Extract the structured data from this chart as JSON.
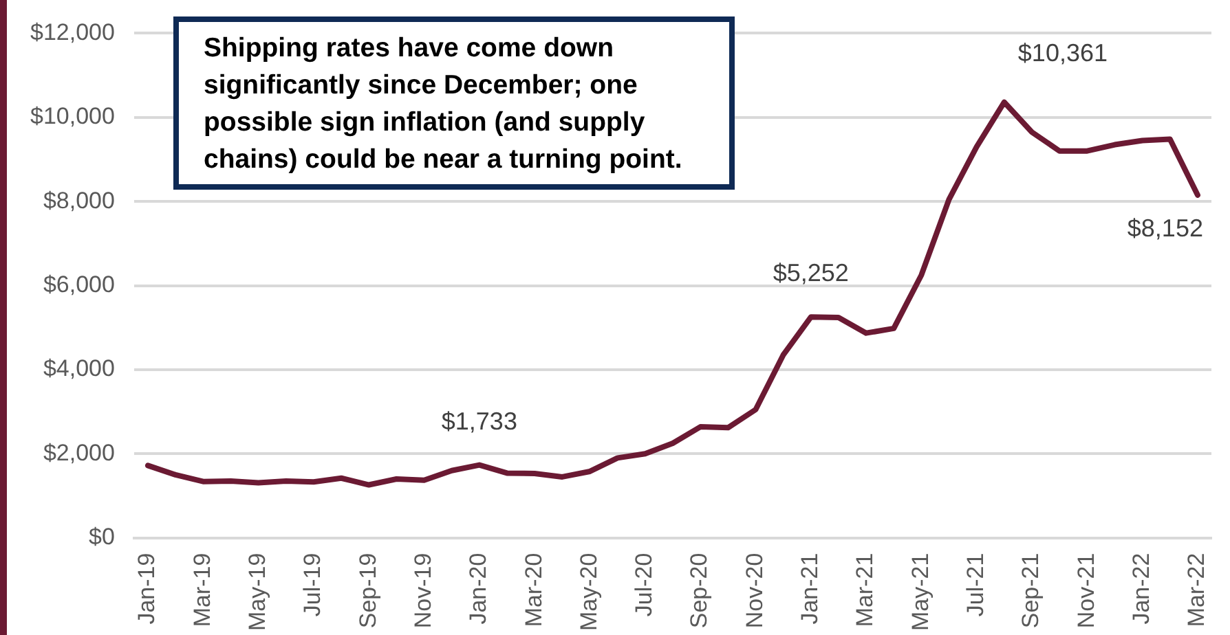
{
  "chart_data": {
    "type": "line",
    "categories": [
      "Jan-19",
      null,
      "Mar-19",
      null,
      "May-19",
      null,
      "Jul-19",
      null,
      "Sep-19",
      null,
      "Nov-19",
      null,
      "Jan-20",
      null,
      "Mar-20",
      null,
      "May-20",
      null,
      "Jul-20",
      null,
      "Sep-20",
      null,
      "Nov-20",
      null,
      "Jan-21",
      null,
      "Mar-21",
      null,
      "May-21",
      null,
      "Jul-21",
      null,
      "Sep-21",
      null,
      "Nov-21",
      null,
      "Jan-22",
      null,
      "Mar-22"
    ],
    "series": [
      {
        "color": "#6b1a33",
        "values": [
          1720,
          1500,
          1340,
          1350,
          1310,
          1350,
          1330,
          1420,
          1260,
          1400,
          1370,
          1600,
          1733,
          1540,
          1530,
          1450,
          1580,
          1900,
          2000,
          2250,
          2640,
          2620,
          3050,
          4350,
          5252,
          5240,
          4870,
          4980,
          6250,
          8050,
          9300,
          10361,
          9650,
          9200,
          9200,
          9350,
          9450,
          9480,
          8152
        ],
        "value_labels": [
          null,
          null,
          null,
          null,
          null,
          null,
          null,
          null,
          null,
          null,
          null,
          null,
          "$1,733",
          null,
          null,
          null,
          null,
          null,
          null,
          null,
          null,
          null,
          null,
          null,
          "$5,252",
          null,
          null,
          null,
          null,
          null,
          null,
          "$10,361",
          null,
          null,
          null,
          null,
          null,
          null,
          "$8,152"
        ]
      }
    ],
    "ylim": [
      0,
      12000
    ],
    "yticks": [
      {
        "value": 0,
        "label": "$0"
      },
      {
        "value": 2000,
        "label": "$2,000"
      },
      {
        "value": 4000,
        "label": "$4,000"
      },
      {
        "value": 6000,
        "label": "$6,000"
      },
      {
        "value": 8000,
        "label": "$8,000"
      },
      {
        "value": 10000,
        "label": "$10,000"
      },
      {
        "value": 12000,
        "label": "$12,000"
      }
    ],
    "grid": "y",
    "legend": false,
    "marker": "none",
    "line_style": "solid",
    "annotations": [
      "Shipping rates have come down significantly since December; one possible sign inflation (and supply chains) could be near a turning point."
    ]
  }
}
